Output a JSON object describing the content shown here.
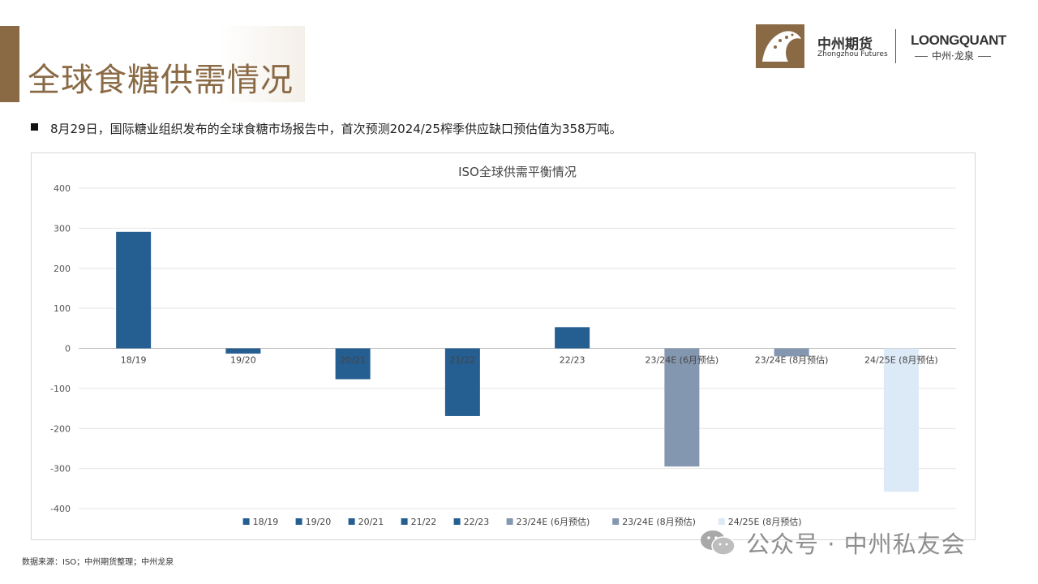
{
  "page_title": "全球食糖供需情况",
  "logos": {
    "zhongzhou_cn": "中州期货",
    "zhongzhou_en": "Zhongzhou Futures",
    "loongquant": "LOONGQUANT",
    "loongquant_sub": "中州·龙泉"
  },
  "bullet_text": "8月29日，国际糖业组织发布的全球食糖市场报告中，首次预测2024/25榨季供应缺口预估值为358万吨。",
  "source_note": "数据来源：ISO；中州期货整理；中州龙泉",
  "watermark": "公众号 · 中州私友会",
  "chart_data": {
    "type": "bar",
    "title": "ISO全球供需平衡情况",
    "categories": [
      "18/19",
      "19/20",
      "20/21",
      "21/22",
      "22/23",
      "23/24E (6月预估)",
      "23/24E (8月预估)",
      "24/25E (8月预估)"
    ],
    "values": [
      291,
      -13,
      -77,
      -169,
      53,
      -295,
      -20,
      -358
    ],
    "colors": [
      "#255e91",
      "#255e91",
      "#255e91",
      "#255e91",
      "#255e91",
      "#8497b0",
      "#8497b0",
      "#dce9f7"
    ],
    "ylim": [
      -400,
      400
    ],
    "yticks": [
      400,
      300,
      200,
      100,
      0,
      -100,
      -200,
      -300,
      -400
    ],
    "grid": true,
    "legend": "bottom",
    "legend_entries": [
      "18/19",
      "19/20",
      "20/21",
      "21/22",
      "22/23",
      "23/24E (6月预估)",
      "23/24E (8月预估)",
      "24/25E (8月预估)"
    ]
  }
}
